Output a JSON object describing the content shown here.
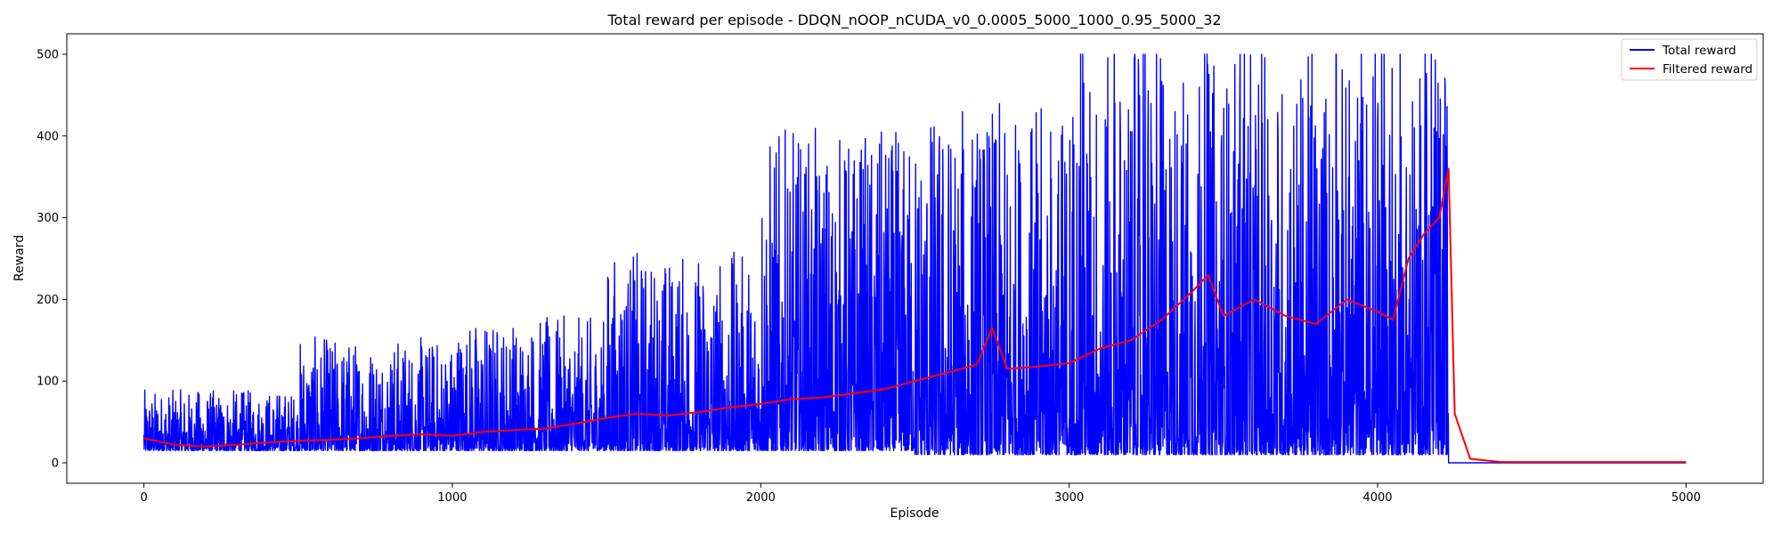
{
  "chart_data": {
    "type": "line",
    "title": "Total reward per episode - DDQN_nOOP_nCUDA_v0_0.0005_5000_1000_0.95_5000_32",
    "xlabel": "Episode",
    "ylabel": "Reward",
    "xlim": [
      -250,
      5250
    ],
    "ylim": [
      -25,
      525
    ],
    "xticks": [
      0,
      1000,
      2000,
      3000,
      4000,
      5000
    ],
    "yticks": [
      0,
      100,
      200,
      300,
      400,
      500
    ],
    "grid": false,
    "legend_position": "top-right",
    "series": [
      {
        "name": "Total reward",
        "color": "#0000ff",
        "episodes": 5000,
        "note_values_by_range": [
          {
            "x": [
              0,
              500
            ],
            "baseline": 15,
            "max": 90
          },
          {
            "x": [
              500,
              1000
            ],
            "baseline": 15,
            "max": 155
          },
          {
            "x": [
              1000,
              1500
            ],
            "baseline": 15,
            "max": 180
          },
          {
            "x": [
              1500,
              2000
            ],
            "baseline": 15,
            "max": 260
          },
          {
            "x": [
              2000,
              2500
            ],
            "baseline": 15,
            "max": 410
          },
          {
            "x": [
              2500,
              3000
            ],
            "baseline": 10,
            "max": 440
          },
          {
            "x": [
              3000,
              3500
            ],
            "baseline": 10,
            "max": 500
          },
          {
            "x": [
              3500,
              4230
            ],
            "baseline": 10,
            "max": 500
          },
          {
            "x": [
              4230,
              5000
            ],
            "baseline": 0,
            "max": 0
          }
        ]
      },
      {
        "name": "Filtered reward",
        "color": "#ff0000",
        "x": [
          0,
          100,
          200,
          300,
          400,
          500,
          600,
          700,
          800,
          900,
          1000,
          1100,
          1200,
          1300,
          1400,
          1500,
          1600,
          1700,
          1800,
          1900,
          2000,
          2100,
          2200,
          2300,
          2400,
          2500,
          2600,
          2700,
          2750,
          2800,
          2900,
          3000,
          3100,
          3200,
          3300,
          3400,
          3450,
          3500,
          3600,
          3700,
          3800,
          3900,
          4000,
          4050,
          4100,
          4150,
          4200,
          4230,
          4250,
          4300,
          4400,
          5000
        ],
        "values": [
          30,
          22,
          20,
          22,
          25,
          27,
          28,
          30,
          33,
          35,
          33,
          38,
          40,
          42,
          48,
          55,
          60,
          58,
          62,
          68,
          72,
          78,
          80,
          85,
          90,
          100,
          110,
          120,
          165,
          115,
          118,
          122,
          140,
          150,
          175,
          210,
          230,
          180,
          200,
          180,
          170,
          200,
          185,
          175,
          250,
          280,
          300,
          360,
          60,
          5,
          1,
          1
        ]
      }
    ]
  }
}
